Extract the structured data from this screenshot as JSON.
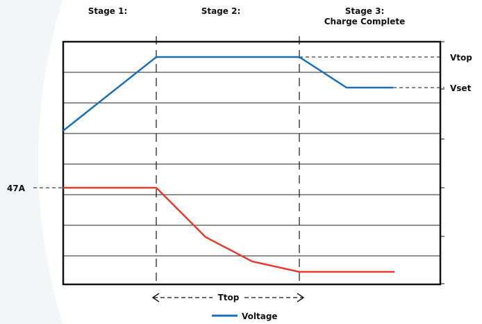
{
  "stages": {
    "stage1": "Stage 1:",
    "stage2": "Stage 2:",
    "stage3_line1": "Stage 3:",
    "stage3_line2": "Charge Complete"
  },
  "markers": {
    "vtop": "Vtop",
    "vset": "Vset",
    "current": "47A",
    "ttop": "Ttop"
  },
  "legend": {
    "voltage": "Voltage"
  },
  "colors": {
    "voltage_line": "#1a6fb5",
    "current_line": "#e53a2c",
    "frame": "#111111",
    "grid": "#222222",
    "background_shade": "#f4f5f7"
  }
}
